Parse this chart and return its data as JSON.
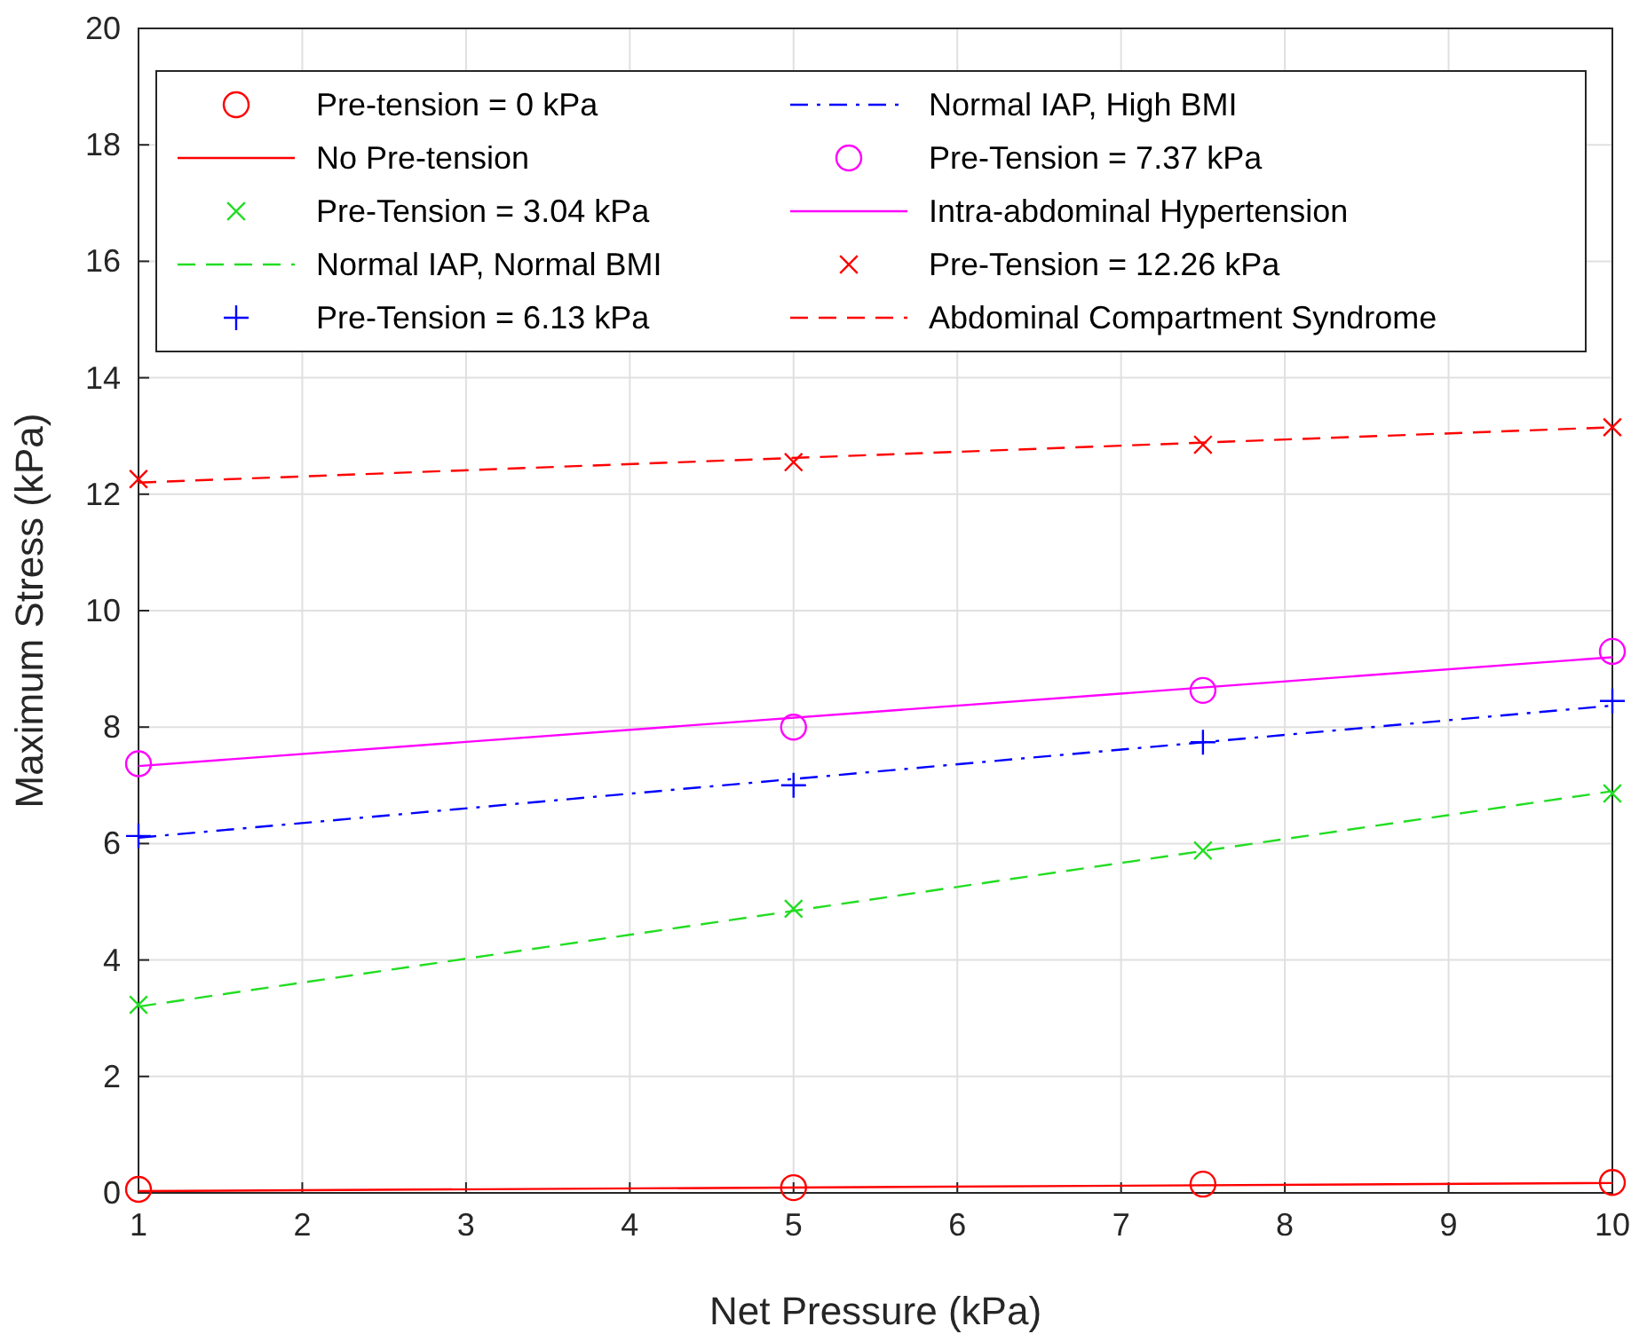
{
  "chart_data": {
    "type": "scatter",
    "xlabel": "Net Pressure (kPa)",
    "ylabel": "Maximum Stress (kPa)",
    "xlim": [
      1,
      10
    ],
    "ylim": [
      0,
      20
    ],
    "xticks": [
      1,
      2,
      3,
      4,
      5,
      6,
      7,
      8,
      9,
      10
    ],
    "yticks": [
      0,
      2,
      4,
      6,
      8,
      10,
      12,
      14,
      16,
      18,
      20
    ],
    "grid": true,
    "legend": "top",
    "series": [
      {
        "name": "Pre-tension = 0 kPa",
        "type": "scatter",
        "marker": "circle",
        "color": "#ff0000",
        "x": [
          1,
          5,
          7.5,
          10
        ],
        "values": [
          0.06,
          0.09,
          0.15,
          0.18
        ]
      },
      {
        "name": "No Pre-tension",
        "type": "line",
        "line_style": "solid",
        "color": "#ff0000",
        "x": [
          1,
          10
        ],
        "values": [
          0.03,
          0.17
        ]
      },
      {
        "name": "Pre-Tension = 3.04 kPa",
        "type": "scatter",
        "marker": "cross",
        "color": "#22dd22",
        "x": [
          1,
          5,
          7.5,
          10
        ],
        "values": [
          3.23,
          4.88,
          5.88,
          6.86
        ]
      },
      {
        "name": "Normal IAP, Normal BMI",
        "type": "line",
        "line_style": "dashed",
        "color": "#22dd22",
        "x": [
          1,
          10
        ],
        "values": [
          3.2,
          6.9
        ]
      },
      {
        "name": "Pre-Tension = 6.13 kPa",
        "type": "scatter",
        "marker": "plus",
        "color": "#0000ff",
        "x": [
          1,
          5,
          7.5,
          10
        ],
        "values": [
          6.13,
          7.0,
          7.74,
          8.45
        ]
      },
      {
        "name": "Normal IAP, High BMI",
        "type": "line",
        "line_style": "dashdot",
        "color": "#0000ff",
        "x": [
          1,
          10
        ],
        "values": [
          6.1,
          8.37
        ]
      },
      {
        "name": "Pre-Tension = 7.37 kPa",
        "type": "scatter",
        "marker": "circle",
        "color": "#ff00ff",
        "x": [
          1,
          5,
          7.5,
          10
        ],
        "values": [
          7.37,
          8.0,
          8.63,
          9.3
        ]
      },
      {
        "name": "Intra-abdominal Hypertension",
        "type": "line",
        "line_style": "solid",
        "color": "#ff00ff",
        "x": [
          1,
          10
        ],
        "values": [
          7.33,
          9.2
        ]
      },
      {
        "name": "Pre-Tension = 12.26 kPa",
        "type": "scatter",
        "marker": "cross",
        "color": "#ff0000",
        "x": [
          1,
          5,
          7.5,
          10
        ],
        "values": [
          12.26,
          12.55,
          12.85,
          13.15
        ]
      },
      {
        "name": "Abdominal Compartment Syndrome",
        "type": "line",
        "line_style": "dashed",
        "color": "#ff0000",
        "x": [
          1,
          10
        ],
        "values": [
          12.2,
          13.15
        ]
      }
    ]
  }
}
